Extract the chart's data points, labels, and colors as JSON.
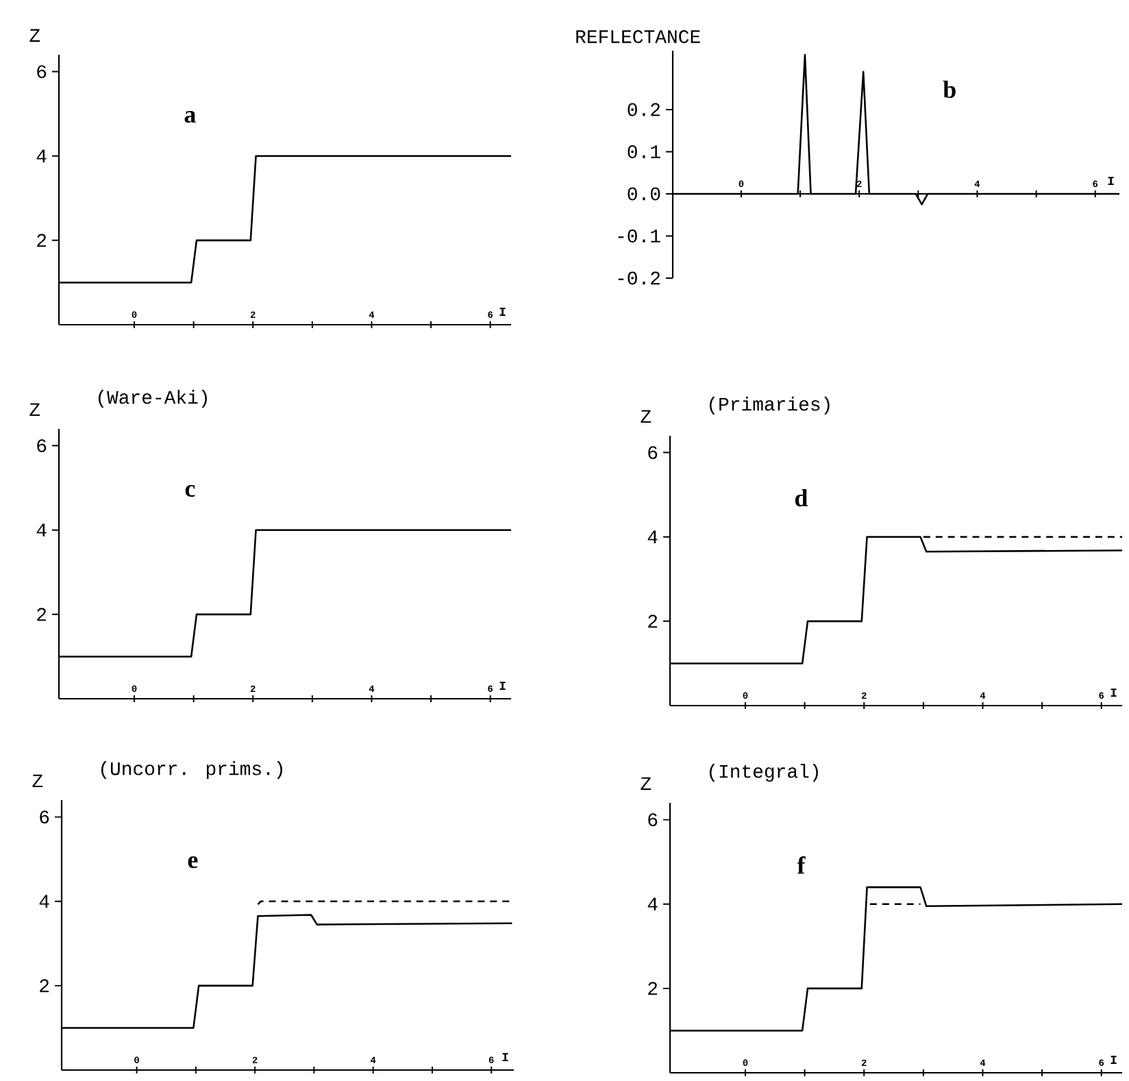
{
  "chart_data": [
    {
      "type": "line",
      "ylabel": "Z",
      "xlabel": "I",
      "annotations": [
        "a"
      ],
      "xlim": [
        -1.27,
        6.35
      ],
      "ylim": [
        0,
        6.4
      ],
      "xticks": [
        0,
        {
          "value": 1,
          "label": null
        },
        2,
        {
          "value": 3,
          "label": null
        },
        4,
        {
          "value": 5,
          "label": null
        },
        6
      ],
      "yticks": [
        2,
        4,
        6
      ],
      "series": [
        {
          "x": [
            -1.27,
            0.96,
            1.05,
            1.96,
            2.05,
            6.35
          ],
          "values": [
            1,
            1,
            2,
            2,
            4,
            4
          ],
          "color": "#000000",
          "line_style": "solid"
        }
      ]
    },
    {
      "type": "line",
      "ylabel": "REFLECTANCE",
      "xlabel": "I",
      "annotations": [
        "b"
      ],
      "xlim": [
        -1.16,
        6.41
      ],
      "ylim": [
        -0.2,
        0.34
      ],
      "xticks": [
        0,
        {
          "value": 1,
          "label": null
        },
        2,
        {
          "value": 3,
          "label": null
        },
        4,
        {
          "value": 5,
          "label": null
        },
        6
      ],
      "yticks": [
        -0.2,
        -0.1,
        {
          "value": 0,
          "label": "0.0"
        },
        0.1,
        0.2
      ],
      "series": [
        {
          "x": [
            -1.16,
            0.96,
            1.08,
            1.18,
            1.94,
            2.07,
            2.17,
            2.96,
            3.06,
            3.16,
            6.41
          ],
          "values": [
            0,
            0,
            0.33,
            0,
            0,
            0.29,
            0,
            0,
            -0.025,
            0,
            0
          ],
          "color": "#000000",
          "line_style": "solid"
        }
      ]
    },
    {
      "type": "line",
      "ylabel": "Z",
      "title": "(Ware-Aki)",
      "xlabel": "I",
      "annotations": [
        "c"
      ],
      "xlim": [
        -1.27,
        6.35
      ],
      "ylim": [
        0,
        6.4
      ],
      "xticks": [
        0,
        {
          "value": 1,
          "label": null
        },
        2,
        {
          "value": 3,
          "label": null
        },
        4,
        {
          "value": 5,
          "label": null
        },
        6
      ],
      "yticks": [
        2,
        4,
        6
      ],
      "series": [
        {
          "x": [
            -1.27,
            0.96,
            1.05,
            1.96,
            2.05,
            6.35
          ],
          "values": [
            1,
            1,
            2,
            2,
            4,
            4
          ],
          "color": "#000000",
          "line_style": "solid"
        }
      ]
    },
    {
      "type": "line",
      "ylabel": "Z",
      "title": "(Primaries)",
      "xlabel": "I",
      "annotations": [
        "d"
      ],
      "xlim": [
        -1.27,
        6.35
      ],
      "ylim": [
        0,
        6.4
      ],
      "xticks": [
        0,
        {
          "value": 1,
          "label": null
        },
        2,
        {
          "value": 3,
          "label": null
        },
        4,
        {
          "value": 5,
          "label": null
        },
        6
      ],
      "yticks": [
        2,
        4,
        6
      ],
      "series": [
        {
          "x": [
            -1.27,
            0.96,
            1.05,
            1.96,
            2.05,
            2.95,
            3.05,
            6.35
          ],
          "values": [
            1,
            1,
            2,
            2,
            4,
            4,
            3.65,
            3.68
          ],
          "color": "#000000",
          "line_style": "solid"
        },
        {
          "x": [
            3.0,
            6.35
          ],
          "values": [
            4,
            4
          ],
          "color": "#000000",
          "line_style": "dashed"
        }
      ]
    },
    {
      "type": "line",
      "ylabel": "Z",
      "title": "(Uncorr. prims.)",
      "xlabel": "I",
      "annotations": [
        "e"
      ],
      "xlim": [
        -1.27,
        6.38
      ],
      "ylim": [
        0,
        6.4
      ],
      "xticks": [
        0,
        {
          "value": 1,
          "label": null
        },
        2,
        {
          "value": 3,
          "label": null
        },
        4,
        {
          "value": 5,
          "label": null
        },
        6
      ],
      "yticks": [
        2,
        4,
        6
      ],
      "series": [
        {
          "x": [
            -1.27,
            0.96,
            1.05,
            1.96,
            2.05,
            2.95,
            3.05,
            6.35
          ],
          "values": [
            1,
            1,
            2,
            2,
            3.65,
            3.68,
            3.45,
            3.48
          ],
          "color": "#000000",
          "line_style": "solid"
        },
        {
          "x": [
            2.05,
            2.1,
            6.35
          ],
          "values": [
            3.93,
            4,
            4
          ],
          "color": "#000000",
          "line_style": "dashed"
        }
      ]
    },
    {
      "type": "line",
      "ylabel": "Z",
      "title": "(Integral)",
      "xlabel": "I",
      "annotations": [
        "f"
      ],
      "xlim": [
        -1.27,
        6.35
      ],
      "ylim": [
        0,
        6.4
      ],
      "xticks": [
        0,
        {
          "value": 1,
          "label": null
        },
        2,
        {
          "value": 3,
          "label": null
        },
        4,
        {
          "value": 5,
          "label": null
        },
        6
      ],
      "yticks": [
        2,
        4,
        6
      ],
      "series": [
        {
          "x": [
            -1.27,
            0.96,
            1.05,
            1.96,
            2.05,
            2.95,
            3.05,
            6.35
          ],
          "values": [
            1,
            1,
            2,
            2,
            4.4,
            4.4,
            3.95,
            4.0
          ],
          "color": "#000000",
          "line_style": "solid"
        },
        {
          "x": [
            2.1,
            2.95
          ],
          "values": [
            4,
            4
          ],
          "color": "#000000",
          "line_style": "dashed"
        }
      ]
    }
  ]
}
